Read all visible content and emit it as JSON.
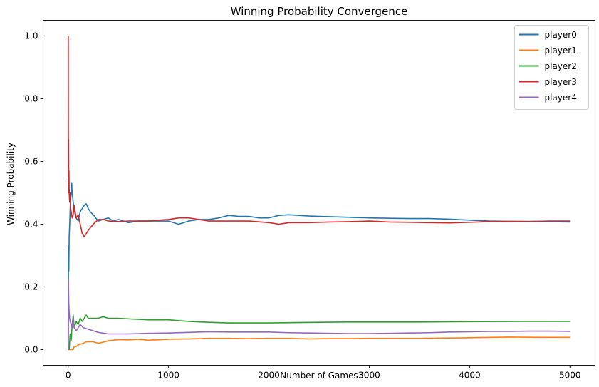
{
  "chart_data": {
    "type": "line",
    "title": "Winning Probability Convergence",
    "xlabel": "Number of Games",
    "ylabel": "Winning Probability",
    "xlim": [
      -250,
      5250
    ],
    "ylim": [
      -0.05,
      1.05
    ],
    "xticks": [
      0,
      1000,
      2000,
      3000,
      4000,
      5000
    ],
    "yticks": [
      0.0,
      0.2,
      0.4,
      0.6,
      0.8,
      1.0
    ],
    "xtick_labels": [
      "0",
      "1000",
      "2000",
      "3000",
      "4000",
      "5000"
    ],
    "ytick_labels": [
      "0.0",
      "0.2",
      "0.4",
      "0.6",
      "0.8",
      "1.0"
    ],
    "grid": false,
    "legend": "top-right",
    "series": [
      {
        "name": "player0",
        "color": "#1f77b4",
        "points": [
          [
            1,
            0.0
          ],
          [
            3,
            0.33
          ],
          [
            6,
            0.25
          ],
          [
            10,
            0.36
          ],
          [
            15,
            0.4
          ],
          [
            20,
            0.45
          ],
          [
            25,
            0.48
          ],
          [
            30,
            0.5
          ],
          [
            35,
            0.53
          ],
          [
            40,
            0.5
          ],
          [
            50,
            0.47
          ],
          [
            60,
            0.45
          ],
          [
            70,
            0.43
          ],
          [
            80,
            0.42
          ],
          [
            100,
            0.41
          ],
          [
            120,
            0.44
          ],
          [
            140,
            0.45
          ],
          [
            160,
            0.46
          ],
          [
            180,
            0.465
          ],
          [
            200,
            0.45
          ],
          [
            220,
            0.44
          ],
          [
            250,
            0.43
          ],
          [
            300,
            0.41
          ],
          [
            350,
            0.415
          ],
          [
            400,
            0.42
          ],
          [
            450,
            0.41
          ],
          [
            500,
            0.415
          ],
          [
            600,
            0.405
          ],
          [
            700,
            0.41
          ],
          [
            800,
            0.41
          ],
          [
            900,
            0.41
          ],
          [
            1000,
            0.41
          ],
          [
            1100,
            0.4
          ],
          [
            1200,
            0.41
          ],
          [
            1300,
            0.415
          ],
          [
            1400,
            0.415
          ],
          [
            1500,
            0.42
          ],
          [
            1600,
            0.428
          ],
          [
            1700,
            0.425
          ],
          [
            1800,
            0.425
          ],
          [
            1900,
            0.42
          ],
          [
            2000,
            0.42
          ],
          [
            2100,
            0.428
          ],
          [
            2200,
            0.43
          ],
          [
            2300,
            0.428
          ],
          [
            2400,
            0.426
          ],
          [
            2500,
            0.425
          ],
          [
            2600,
            0.424
          ],
          [
            2800,
            0.422
          ],
          [
            3000,
            0.42
          ],
          [
            3200,
            0.419
          ],
          [
            3400,
            0.418
          ],
          [
            3600,
            0.418
          ],
          [
            3800,
            0.416
          ],
          [
            4000,
            0.413
          ],
          [
            4200,
            0.41
          ],
          [
            4400,
            0.409
          ],
          [
            4600,
            0.408
          ],
          [
            4800,
            0.408
          ],
          [
            5000,
            0.407
          ]
        ]
      },
      {
        "name": "player1",
        "color": "#ff7f0e",
        "points": [
          [
            1,
            0.0
          ],
          [
            50,
            0.0
          ],
          [
            60,
            0.01
          ],
          [
            80,
            0.01
          ],
          [
            100,
            0.015
          ],
          [
            150,
            0.02
          ],
          [
            180,
            0.025
          ],
          [
            250,
            0.025
          ],
          [
            300,
            0.02
          ],
          [
            400,
            0.028
          ],
          [
            500,
            0.032
          ],
          [
            600,
            0.031
          ],
          [
            700,
            0.033
          ],
          [
            800,
            0.03
          ],
          [
            1000,
            0.033
          ],
          [
            1200,
            0.034
          ],
          [
            1400,
            0.036
          ],
          [
            1600,
            0.036
          ],
          [
            1800,
            0.035
          ],
          [
            2000,
            0.036
          ],
          [
            2200,
            0.036
          ],
          [
            2400,
            0.034
          ],
          [
            2600,
            0.035
          ],
          [
            2800,
            0.035
          ],
          [
            3000,
            0.036
          ],
          [
            3200,
            0.036
          ],
          [
            3500,
            0.036
          ],
          [
            3800,
            0.037
          ],
          [
            4000,
            0.038
          ],
          [
            4400,
            0.04
          ],
          [
            4700,
            0.039
          ],
          [
            5000,
            0.039
          ]
        ]
      },
      {
        "name": "player2",
        "color": "#2ca02c",
        "points": [
          [
            1,
            0.0
          ],
          [
            10,
            0.0
          ],
          [
            20,
            0.05
          ],
          [
            30,
            0.03
          ],
          [
            40,
            0.08
          ],
          [
            50,
            0.11
          ],
          [
            60,
            0.07
          ],
          [
            80,
            0.09
          ],
          [
            100,
            0.08
          ],
          [
            120,
            0.1
          ],
          [
            140,
            0.09
          ],
          [
            160,
            0.1
          ],
          [
            180,
            0.11
          ],
          [
            200,
            0.1
          ],
          [
            250,
            0.1
          ],
          [
            300,
            0.1
          ],
          [
            350,
            0.105
          ],
          [
            400,
            0.1
          ],
          [
            500,
            0.1
          ],
          [
            600,
            0.098
          ],
          [
            800,
            0.095
          ],
          [
            1000,
            0.095
          ],
          [
            1200,
            0.09
          ],
          [
            1400,
            0.087
          ],
          [
            1600,
            0.085
          ],
          [
            1800,
            0.085
          ],
          [
            2000,
            0.085
          ],
          [
            2200,
            0.086
          ],
          [
            2500,
            0.087
          ],
          [
            2800,
            0.088
          ],
          [
            3000,
            0.088
          ],
          [
            3500,
            0.088
          ],
          [
            4000,
            0.089
          ],
          [
            4500,
            0.09
          ],
          [
            5000,
            0.09
          ]
        ]
      },
      {
        "name": "player3",
        "color": "#d62728",
        "points": [
          [
            1,
            1.0
          ],
          [
            2,
            0.55
          ],
          [
            4,
            0.67
          ],
          [
            6,
            0.5
          ],
          [
            8,
            0.57
          ],
          [
            10,
            0.5
          ],
          [
            15,
            0.47
          ],
          [
            20,
            0.5
          ],
          [
            25,
            0.45
          ],
          [
            30,
            0.44
          ],
          [
            40,
            0.42
          ],
          [
            50,
            0.43
          ],
          [
            60,
            0.46
          ],
          [
            70,
            0.44
          ],
          [
            80,
            0.42
          ],
          [
            100,
            0.43
          ],
          [
            120,
            0.4
          ],
          [
            140,
            0.37
          ],
          [
            160,
            0.36
          ],
          [
            180,
            0.37
          ],
          [
            200,
            0.38
          ],
          [
            250,
            0.4
          ],
          [
            300,
            0.415
          ],
          [
            350,
            0.415
          ],
          [
            400,
            0.41
          ],
          [
            500,
            0.408
          ],
          [
            600,
            0.41
          ],
          [
            700,
            0.41
          ],
          [
            800,
            0.41
          ],
          [
            900,
            0.413
          ],
          [
            1000,
            0.415
          ],
          [
            1100,
            0.42
          ],
          [
            1200,
            0.42
          ],
          [
            1300,
            0.415
          ],
          [
            1400,
            0.41
          ],
          [
            1600,
            0.41
          ],
          [
            1800,
            0.41
          ],
          [
            2000,
            0.405
          ],
          [
            2100,
            0.4
          ],
          [
            2200,
            0.405
          ],
          [
            2400,
            0.405
          ],
          [
            2600,
            0.407
          ],
          [
            2800,
            0.408
          ],
          [
            3000,
            0.41
          ],
          [
            3200,
            0.407
          ],
          [
            3400,
            0.406
          ],
          [
            3600,
            0.405
          ],
          [
            3800,
            0.404
          ],
          [
            4000,
            0.406
          ],
          [
            4200,
            0.408
          ],
          [
            4400,
            0.409
          ],
          [
            4600,
            0.409
          ],
          [
            4800,
            0.41
          ],
          [
            5000,
            0.41
          ]
        ]
      },
      {
        "name": "player4",
        "color": "#9467bd",
        "points": [
          [
            1,
            0.0
          ],
          [
            3,
            0.22
          ],
          [
            6,
            0.15
          ],
          [
            10,
            0.12
          ],
          [
            15,
            0.1
          ],
          [
            20,
            0.09
          ],
          [
            30,
            0.08
          ],
          [
            40,
            0.07
          ],
          [
            50,
            0.1
          ],
          [
            60,
            0.07
          ],
          [
            80,
            0.06
          ],
          [
            100,
            0.07
          ],
          [
            120,
            0.08
          ],
          [
            150,
            0.07
          ],
          [
            200,
            0.065
          ],
          [
            250,
            0.06
          ],
          [
            300,
            0.055
          ],
          [
            400,
            0.05
          ],
          [
            500,
            0.05
          ],
          [
            600,
            0.05
          ],
          [
            800,
            0.052
          ],
          [
            1000,
            0.053
          ],
          [
            1200,
            0.055
          ],
          [
            1400,
            0.057
          ],
          [
            1600,
            0.056
          ],
          [
            1800,
            0.056
          ],
          [
            2000,
            0.056
          ],
          [
            2200,
            0.054
          ],
          [
            2400,
            0.053
          ],
          [
            2600,
            0.052
          ],
          [
            2800,
            0.051
          ],
          [
            3000,
            0.051
          ],
          [
            3200,
            0.052
          ],
          [
            3400,
            0.053
          ],
          [
            3600,
            0.054
          ],
          [
            3800,
            0.056
          ],
          [
            4000,
            0.057
          ],
          [
            4200,
            0.058
          ],
          [
            4400,
            0.058
          ],
          [
            4600,
            0.059
          ],
          [
            4800,
            0.059
          ],
          [
            5000,
            0.058
          ]
        ]
      }
    ]
  }
}
